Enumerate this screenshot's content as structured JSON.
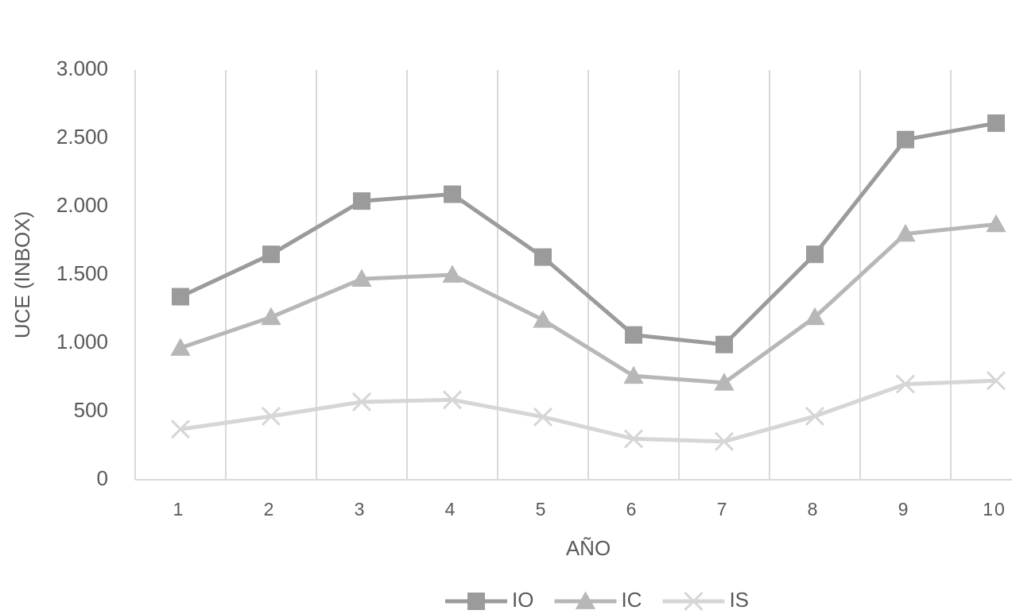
{
  "chart_data": {
    "type": "line",
    "x_label": "AÑO",
    "y_label": "UCE (INBOX)",
    "categories": [
      "1",
      "2",
      "3",
      "4",
      "5",
      "6",
      "7",
      "8",
      "9",
      "10"
    ],
    "series": [
      {
        "name": "IO",
        "color": "#9b9b9b",
        "marker": "square",
        "values": [
          1340,
          1650,
          2040,
          2090,
          1630,
          1060,
          990,
          1650,
          2490,
          2610
        ]
      },
      {
        "name": "IC",
        "color": "#b7b7b7",
        "marker": "triangle",
        "values": [
          965,
          1190,
          1470,
          1500,
          1170,
          760,
          710,
          1190,
          1800,
          1870
        ]
      },
      {
        "name": "IS",
        "color": "#d6d6d6",
        "marker": "x",
        "values": [
          370,
          465,
          570,
          585,
          460,
          300,
          280,
          465,
          700,
          725
        ]
      }
    ],
    "ylim": [
      0,
      3000
    ],
    "yticks": [
      0,
      500,
      {
        "value": 1000,
        "label": "1.000"
      },
      {
        "value": 1500,
        "label": "1.500"
      },
      {
        "value": 2000,
        "label": "2.000"
      },
      {
        "value": 2500,
        "label": "2.500"
      },
      {
        "value": 3000,
        "label": "3.000"
      }
    ],
    "grid": "vertical",
    "legend": "bottom"
  }
}
